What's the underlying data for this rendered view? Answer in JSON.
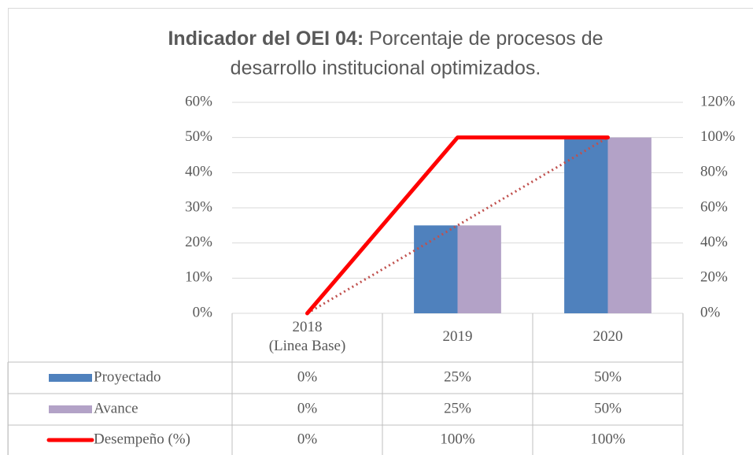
{
  "chart_data": {
    "type": "bar",
    "title_bold": "Indicador del OEI 04:",
    "title": "Porcentaje de procesos de desarrollo institucional  optimizados.",
    "categories": [
      "2018\n(Linea Base)",
      "2019",
      "2020"
    ],
    "series": [
      {
        "name": "Proyectado",
        "type": "bar",
        "color": "#4f81bd",
        "values": [
          0,
          25,
          50
        ],
        "value_labels": [
          "0%",
          "25%",
          "50%"
        ]
      },
      {
        "name": "Avance",
        "type": "bar",
        "color": "#b3a2c7",
        "values": [
          0,
          25,
          50
        ],
        "value_labels": [
          "0%",
          "25%",
          "50%"
        ]
      },
      {
        "name": "Desempeño (%)",
        "type": "line",
        "axis": "y2",
        "color": "#ff0000",
        "values": [
          0,
          100,
          100
        ],
        "value_labels": [
          "0%",
          "100%",
          "100%"
        ],
        "trendline": {
          "color": "#c0504d",
          "style": "dotted"
        }
      }
    ],
    "ylim": [
      0,
      60
    ],
    "yticks": [
      {
        "value": 0,
        "label": "0%"
      },
      {
        "value": 10,
        "label": "10%"
      },
      {
        "value": 20,
        "label": "20%"
      },
      {
        "value": 30,
        "label": "30%"
      },
      {
        "value": 40,
        "label": "40%"
      },
      {
        "value": 50,
        "label": "50%"
      },
      {
        "value": 60,
        "label": "60%"
      }
    ],
    "y2lim": [
      0,
      120
    ],
    "y2ticks": [
      {
        "value": 0,
        "label": "0%"
      },
      {
        "value": 20,
        "label": "20%"
      },
      {
        "value": 40,
        "label": "40%"
      },
      {
        "value": 60,
        "label": "60%"
      },
      {
        "value": 80,
        "label": "80%"
      },
      {
        "value": 100,
        "label": "100%"
      },
      {
        "value": 120,
        "label": "120%"
      }
    ],
    "grid": true
  }
}
